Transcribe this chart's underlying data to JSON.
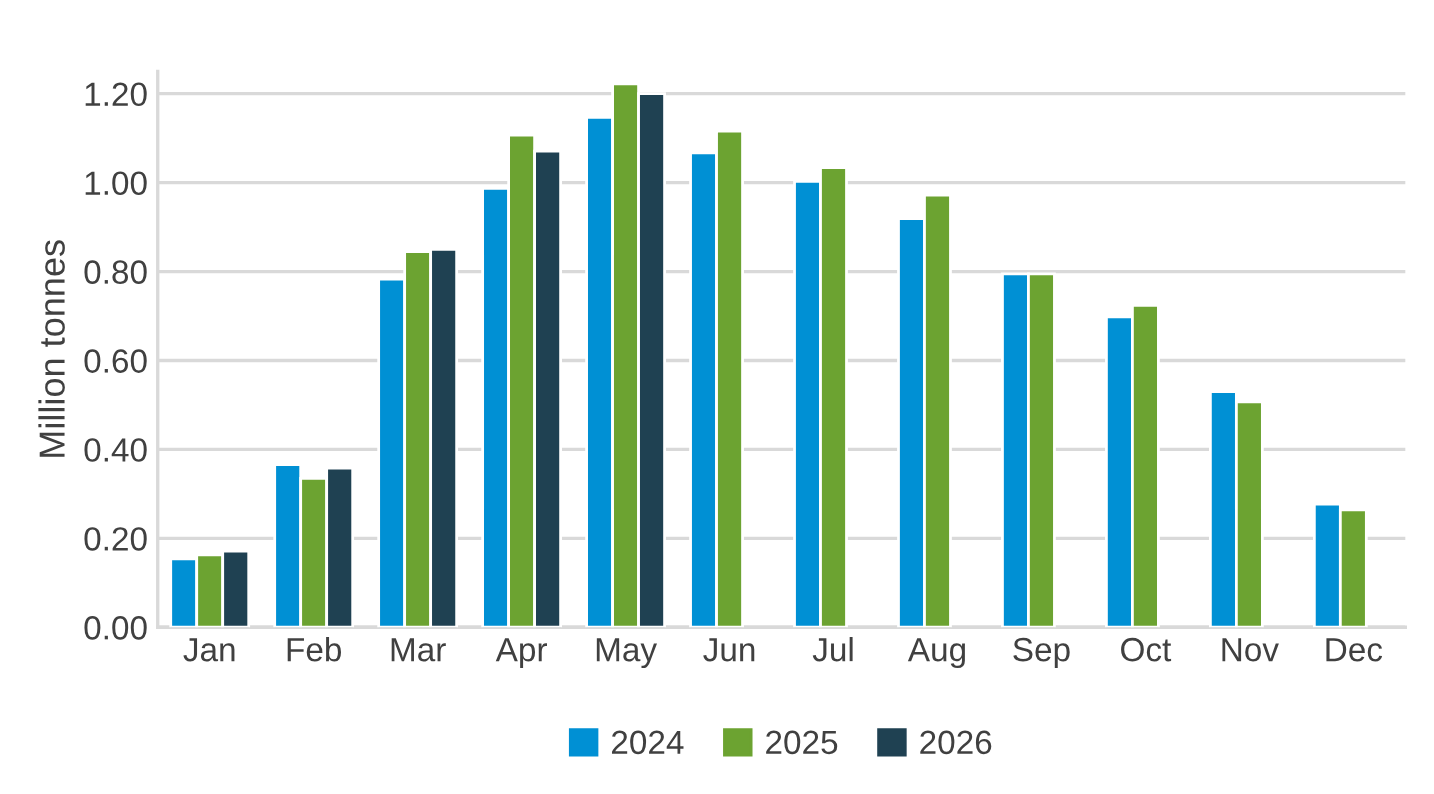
{
  "chart_data": {
    "type": "bar",
    "ylabel": "Million tonnes",
    "categories": [
      "Jan",
      "Feb",
      "Mar",
      "Apr",
      "May",
      "Jun",
      "Jul",
      "Aug",
      "Sep",
      "Oct",
      "Nov",
      "Dec"
    ],
    "series": [
      {
        "name": "2024",
        "color": "#0090d4",
        "values": [
          0.154,
          0.366,
          0.783,
          0.987,
          1.147,
          1.067,
          1.003,
          0.919,
          0.795,
          0.698,
          0.53,
          0.277
        ]
      },
      {
        "name": "2025",
        "color": "#6ca331",
        "values": [
          0.163,
          0.335,
          0.845,
          1.107,
          1.222,
          1.116,
          1.034,
          0.972,
          0.795,
          0.724,
          0.507,
          0.264
        ]
      },
      {
        "name": "2026",
        "color": "#1f4152",
        "values": [
          0.171,
          0.358,
          0.85,
          1.071,
          1.2,
          null,
          null,
          null,
          null,
          null,
          null,
          null
        ]
      }
    ],
    "ylim": [
      0,
      1.25
    ],
    "yticks": [
      {
        "value": 0,
        "label": "0.00"
      },
      {
        "value": 0.2,
        "label": "0.20"
      },
      {
        "value": 0.4,
        "label": "0.40"
      },
      {
        "value": 0.6,
        "label": "0.60"
      },
      {
        "value": 0.8,
        "label": "0.80"
      },
      {
        "value": 1.0,
        "label": "1.00"
      },
      {
        "value": 1.2,
        "label": "1.20"
      }
    ],
    "grid": "y",
    "legend": "bottom"
  }
}
